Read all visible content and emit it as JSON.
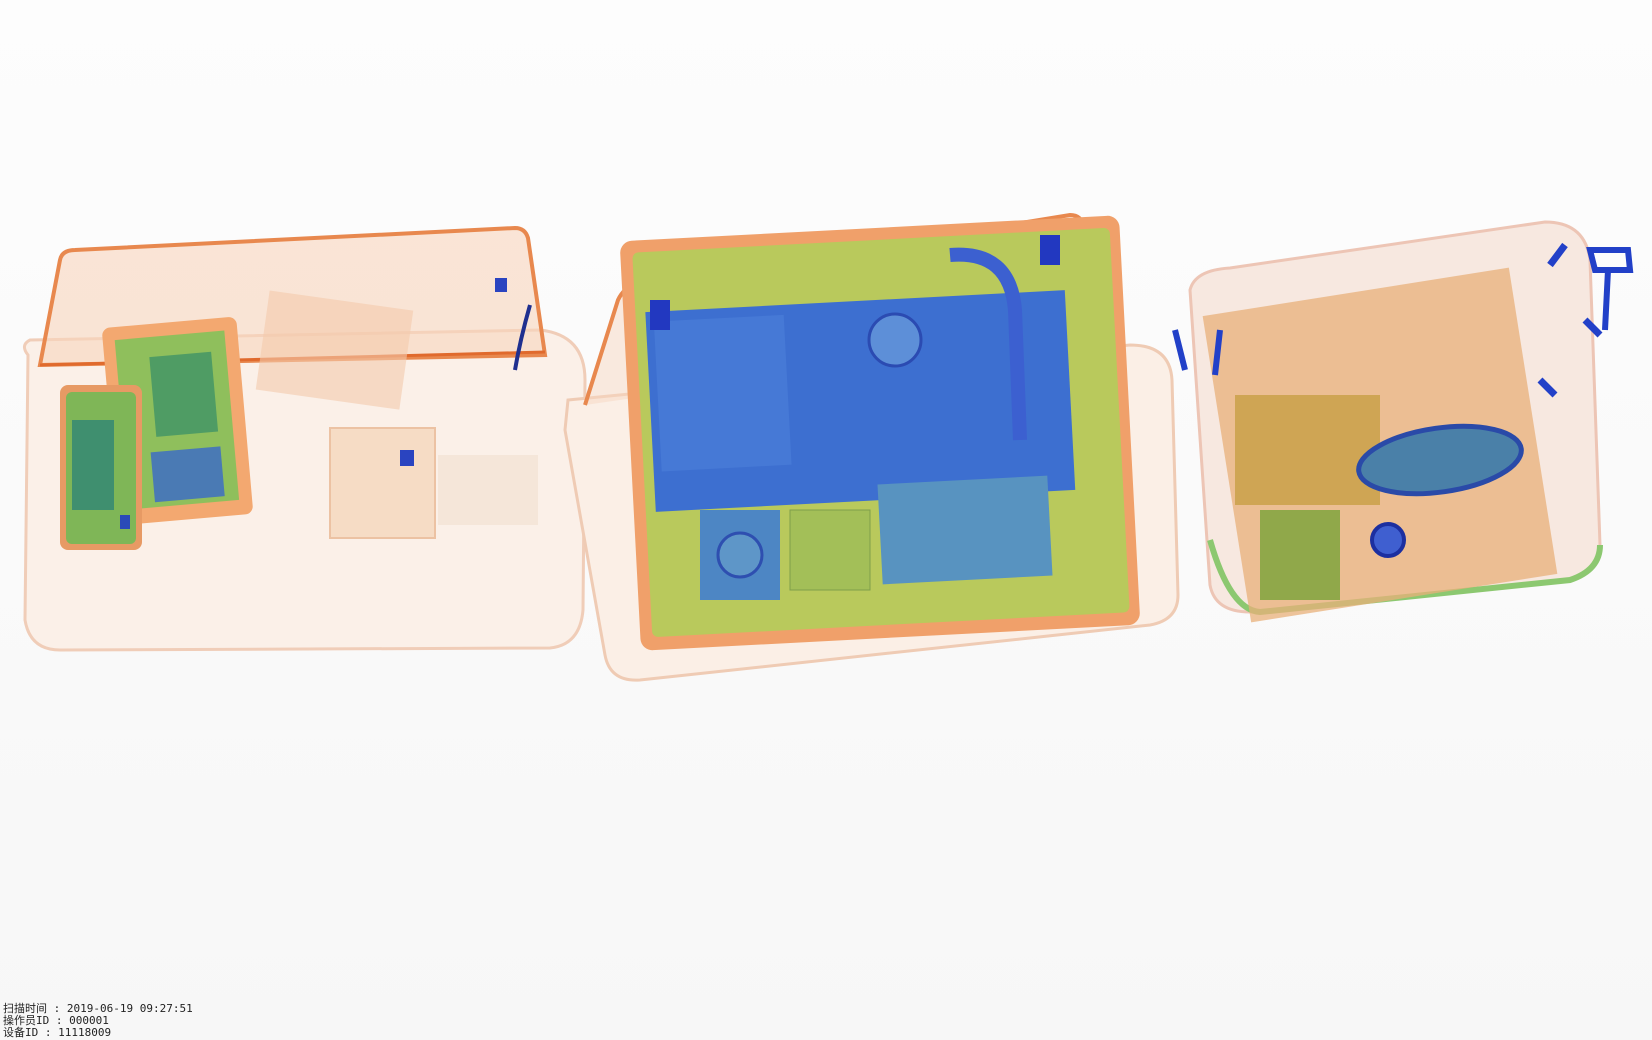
{
  "overlay": {
    "lines": [
      "扫描时间 : 2019-06-19 09:27:51",
      "操作员ID : 000001",
      "设备ID : 11118009"
    ]
  }
}
